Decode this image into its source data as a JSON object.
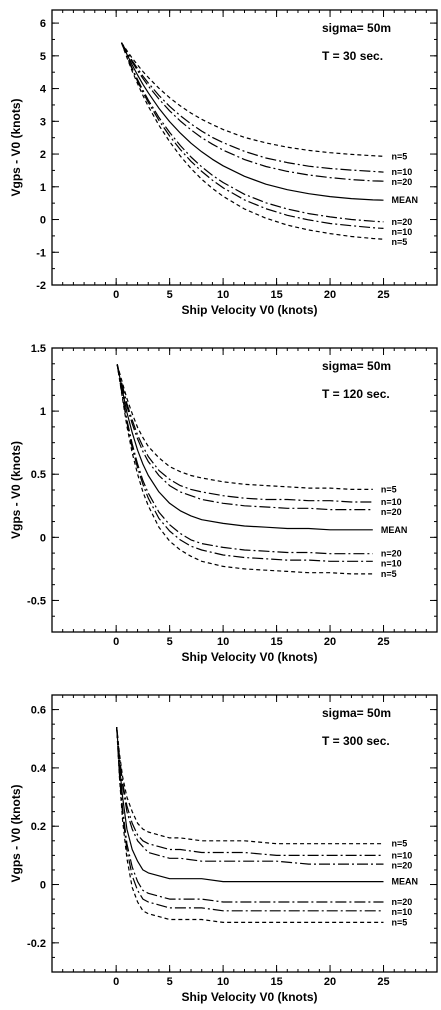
{
  "chart_data": [
    {
      "type": "line",
      "title": "",
      "xlabel": "Ship Velocity   V0   (knots)",
      "ylabel": "Vgps  -  V0   (knots)",
      "xlim": [
        -6,
        30
      ],
      "ylim": [
        -2,
        6.4
      ],
      "xticks": [
        0,
        5,
        10,
        15,
        20,
        25
      ],
      "yticks": [
        -2,
        -1,
        0,
        1,
        2,
        3,
        4,
        5,
        6
      ],
      "x_minor_step": 1,
      "y_minor_step": 0.5,
      "grid": false,
      "annotations": [
        "sigma=  50m",
        "T  =  30  sec."
      ],
      "x": [
        0.5,
        1,
        1.5,
        2,
        2.5,
        3,
        4,
        5,
        6,
        7,
        8,
        9,
        10,
        12,
        14,
        16,
        18,
        20,
        22,
        24,
        25
      ],
      "series": [
        {
          "name": "n=5",
          "dash": "dashed",
          "values": [
            5.4,
            5.16,
            4.93,
            4.72,
            4.52,
            4.34,
            4.01,
            3.72,
            3.47,
            3.25,
            3.06,
            2.9,
            2.75,
            2.51,
            2.34,
            2.21,
            2.11,
            2.04,
            1.99,
            1.95,
            1.93
          ]
        },
        {
          "name": "n=10",
          "dash": "dashdot",
          "values": [
            5.4,
            5.12,
            4.85,
            4.61,
            4.38,
            4.17,
            3.79,
            3.46,
            3.17,
            2.92,
            2.7,
            2.51,
            2.35,
            2.08,
            1.88,
            1.74,
            1.63,
            1.56,
            1.51,
            1.47,
            1.45
          ]
        },
        {
          "name": "n=20",
          "dash": "dashdot",
          "values": [
            5.4,
            5.1,
            4.81,
            4.55,
            4.31,
            4.08,
            3.68,
            3.32,
            3.01,
            2.74,
            2.5,
            2.3,
            2.12,
            1.83,
            1.62,
            1.47,
            1.36,
            1.28,
            1.22,
            1.18,
            1.17
          ]
        },
        {
          "name": "MEAN",
          "dash": "solid",
          "values": [
            5.4,
            5.05,
            4.72,
            4.41,
            4.13,
            3.87,
            3.4,
            2.99,
            2.64,
            2.33,
            2.07,
            1.84,
            1.64,
            1.32,
            1.08,
            0.91,
            0.79,
            0.7,
            0.64,
            0.6,
            0.59
          ]
        },
        {
          "name": "n=20",
          "dash": "dashdot",
          "values": [
            5.4,
            5.0,
            4.62,
            4.27,
            3.95,
            3.65,
            3.12,
            2.66,
            2.26,
            1.91,
            1.61,
            1.35,
            1.13,
            0.77,
            0.51,
            0.32,
            0.18,
            0.08,
            0.0,
            -0.05,
            -0.07
          ]
        },
        {
          "name": "n=10",
          "dash": "dashdot",
          "values": [
            5.4,
            4.98,
            4.59,
            4.22,
            3.89,
            3.58,
            3.03,
            2.55,
            2.14,
            1.78,
            1.47,
            1.2,
            0.97,
            0.6,
            0.33,
            0.13,
            -0.01,
            -0.12,
            -0.19,
            -0.25,
            -0.27
          ]
        },
        {
          "name": "n=5",
          "dash": "dashed",
          "values": [
            5.4,
            4.95,
            4.53,
            4.15,
            3.79,
            3.46,
            2.88,
            2.38,
            1.94,
            1.56,
            1.23,
            0.95,
            0.71,
            0.32,
            0.04,
            -0.17,
            -0.32,
            -0.43,
            -0.52,
            -0.58,
            -0.6
          ]
        }
      ]
    },
    {
      "type": "line",
      "title": "",
      "xlabel": "Ship Velocity   V0   (knots)",
      "ylabel": "Vgps  -  V0   (knots)",
      "xlim": [
        -6,
        30
      ],
      "ylim": [
        -0.75,
        1.5
      ],
      "xticks": [
        0,
        5,
        10,
        15,
        20,
        25
      ],
      "yticks": [
        -0.5,
        0,
        0.5,
        1,
        1.5
      ],
      "x_minor_step": 1,
      "y_minor_step": 0.125,
      "grid": false,
      "annotations": [
        "sigma=  50m",
        "T  =  120  sec."
      ],
      "x": [
        0.1,
        0.5,
        1,
        1.5,
        2,
        2.5,
        3,
        4,
        5,
        6,
        7,
        8,
        10,
        12,
        14,
        16,
        18,
        20,
        22,
        24
      ],
      "series": [
        {
          "name": "n=5",
          "dash": "dashed",
          "values": [
            1.37,
            1.25,
            1.1,
            0.98,
            0.87,
            0.79,
            0.72,
            0.63,
            0.56,
            0.52,
            0.49,
            0.47,
            0.44,
            0.42,
            0.41,
            0.4,
            0.39,
            0.39,
            0.38,
            0.38
          ]
        },
        {
          "name": "n=10",
          "dash": "dashdot",
          "values": [
            1.37,
            1.23,
            1.06,
            0.93,
            0.81,
            0.72,
            0.64,
            0.53,
            0.46,
            0.41,
            0.38,
            0.36,
            0.33,
            0.31,
            0.3,
            0.3,
            0.29,
            0.29,
            0.28,
            0.28
          ]
        },
        {
          "name": "n=20",
          "dash": "dashdot",
          "values": [
            1.37,
            1.22,
            1.04,
            0.9,
            0.78,
            0.68,
            0.6,
            0.49,
            0.41,
            0.36,
            0.33,
            0.3,
            0.27,
            0.25,
            0.24,
            0.23,
            0.23,
            0.22,
            0.22,
            0.22
          ]
        },
        {
          "name": "MEAN",
          "dash": "solid",
          "values": [
            1.37,
            1.2,
            0.99,
            0.83,
            0.69,
            0.58,
            0.49,
            0.36,
            0.27,
            0.21,
            0.17,
            0.14,
            0.11,
            0.09,
            0.08,
            0.07,
            0.07,
            0.06,
            0.06,
            0.06
          ]
        },
        {
          "name": "n=20",
          "dash": "dashdot",
          "values": [
            1.37,
            1.17,
            0.93,
            0.74,
            0.58,
            0.45,
            0.35,
            0.2,
            0.1,
            0.03,
            -0.02,
            -0.05,
            -0.08,
            -0.1,
            -0.11,
            -0.12,
            -0.12,
            -0.13,
            -0.13,
            -0.13
          ]
        },
        {
          "name": "n=10",
          "dash": "dashdot",
          "values": [
            1.37,
            1.16,
            0.91,
            0.71,
            0.55,
            0.42,
            0.31,
            0.15,
            0.05,
            -0.02,
            -0.07,
            -0.1,
            -0.14,
            -0.16,
            -0.17,
            -0.18,
            -0.18,
            -0.19,
            -0.19,
            -0.19
          ]
        },
        {
          "name": "n=5",
          "dash": "dashed",
          "values": [
            1.37,
            1.15,
            0.88,
            0.67,
            0.5,
            0.36,
            0.25,
            0.08,
            -0.03,
            -0.1,
            -0.15,
            -0.19,
            -0.23,
            -0.25,
            -0.26,
            -0.27,
            -0.28,
            -0.28,
            -0.29,
            -0.29
          ]
        }
      ]
    },
    {
      "type": "line",
      "title": "",
      "xlabel": "Ship Velocity   V0   (knots)",
      "ylabel": "Vgps  -  V0   (knots)",
      "xlim": [
        -6,
        30
      ],
      "ylim": [
        -0.3,
        0.65
      ],
      "xticks": [
        0,
        5,
        10,
        15,
        20,
        25
      ],
      "yticks": [
        -0.2,
        0,
        0.2,
        0.4,
        0.6
      ],
      "x_minor_step": 1,
      "y_minor_step": 0.05,
      "grid": false,
      "annotations": [
        "sigma=  50m",
        "T  =  300  sec."
      ],
      "x": [
        0.05,
        0.3,
        0.6,
        1,
        1.5,
        2,
        2.5,
        3,
        4,
        5,
        6,
        8,
        10,
        12,
        15,
        18,
        21,
        24,
        25
      ],
      "series": [
        {
          "name": "n=5",
          "dash": "dashed",
          "values": [
            0.54,
            0.45,
            0.37,
            0.3,
            0.25,
            0.21,
            0.19,
            0.18,
            0.17,
            0.16,
            0.16,
            0.15,
            0.15,
            0.15,
            0.14,
            0.14,
            0.14,
            0.14,
            0.14
          ]
        },
        {
          "name": "n=10",
          "dash": "dashdot",
          "values": [
            0.54,
            0.44,
            0.35,
            0.27,
            0.21,
            0.17,
            0.15,
            0.14,
            0.13,
            0.12,
            0.12,
            0.11,
            0.11,
            0.11,
            0.1,
            0.1,
            0.1,
            0.1,
            0.1
          ]
        },
        {
          "name": "n=20",
          "dash": "dashdot",
          "values": [
            0.54,
            0.43,
            0.34,
            0.25,
            0.19,
            0.15,
            0.13,
            0.11,
            0.1,
            0.09,
            0.09,
            0.08,
            0.08,
            0.08,
            0.08,
            0.07,
            0.07,
            0.07,
            0.07
          ]
        },
        {
          "name": "MEAN",
          "dash": "solid",
          "values": [
            0.54,
            0.41,
            0.3,
            0.19,
            0.12,
            0.08,
            0.05,
            0.04,
            0.03,
            0.02,
            0.02,
            0.02,
            0.01,
            0.01,
            0.01,
            0.01,
            0.01,
            0.01,
            0.01
          ]
        },
        {
          "name": "n=20",
          "dash": "dashdot",
          "values": [
            0.54,
            0.39,
            0.26,
            0.14,
            0.06,
            0.01,
            -0.02,
            -0.03,
            -0.04,
            -0.05,
            -0.05,
            -0.05,
            -0.06,
            -0.06,
            -0.06,
            -0.06,
            -0.06,
            -0.06,
            -0.06
          ]
        },
        {
          "name": "n=10",
          "dash": "dashdot",
          "values": [
            0.54,
            0.38,
            0.24,
            0.12,
            0.03,
            -0.02,
            -0.05,
            -0.06,
            -0.07,
            -0.08,
            -0.08,
            -0.08,
            -0.09,
            -0.09,
            -0.09,
            -0.09,
            -0.09,
            -0.09,
            -0.09
          ]
        },
        {
          "name": "n=5",
          "dash": "dashed",
          "values": [
            0.54,
            0.37,
            0.22,
            0.09,
            -0.01,
            -0.06,
            -0.09,
            -0.1,
            -0.11,
            -0.12,
            -0.12,
            -0.12,
            -0.13,
            -0.13,
            -0.13,
            -0.13,
            -0.13,
            -0.13,
            -0.13
          ]
        }
      ]
    }
  ]
}
